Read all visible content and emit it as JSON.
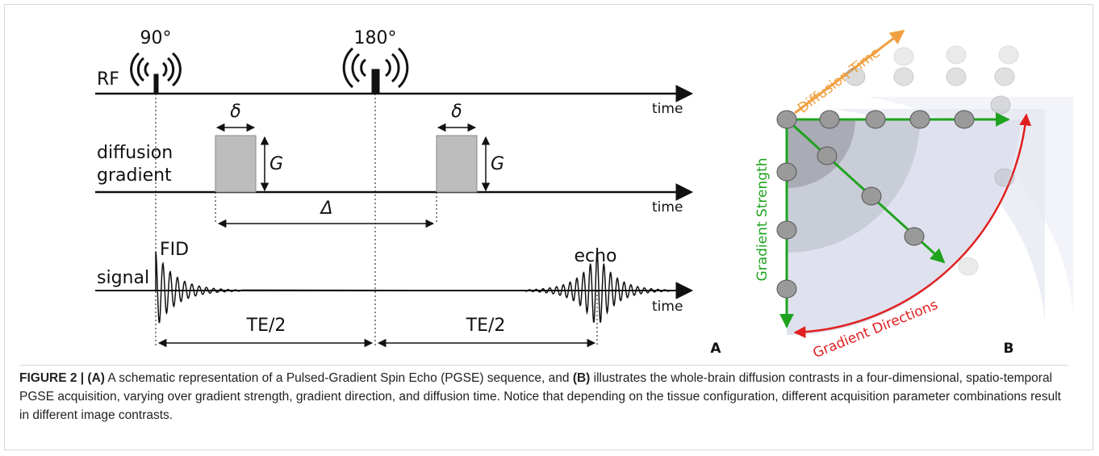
{
  "panel_a": {
    "pulses": [
      "90°",
      "180°"
    ],
    "rows": [
      {
        "label_lines": [
          "RF"
        ],
        "axis": "time"
      },
      {
        "label_lines": [
          "diffusion",
          "gradient"
        ],
        "axis": "time"
      },
      {
        "label_lines": [
          "signal"
        ],
        "axis": "time"
      }
    ],
    "delta_labels": [
      "δ",
      "δ"
    ],
    "gradient_labels": [
      "G",
      "G"
    ],
    "big_delta": "Δ",
    "fid": "FID",
    "echo": "echo",
    "te_labels": [
      "TE/2",
      "TE/2"
    ],
    "panel_label": "A"
  },
  "panel_b": {
    "diffusion_time": "Diffusion Time",
    "gradient_strength": "Gradient Strength",
    "gradient_directions": "Gradient Directions",
    "panel_label": "B"
  },
  "caption": {
    "bold_1": "FIGURE 2 | (A)",
    "text_1": "A schematic representation of a Pulsed-Gradient Spin Echo (PGSE) sequence, and",
    "bold_2": "(B)",
    "text_2": "illustrates the whole-brain diffusion contrasts in a four-dimensional, spatio-temporal PGSE acquisition, varying over gradient strength, gradient direction, and diffusion time. Notice that depending on the tissue configuration, different acquisition parameter combinations result in different image contrasts."
  }
}
